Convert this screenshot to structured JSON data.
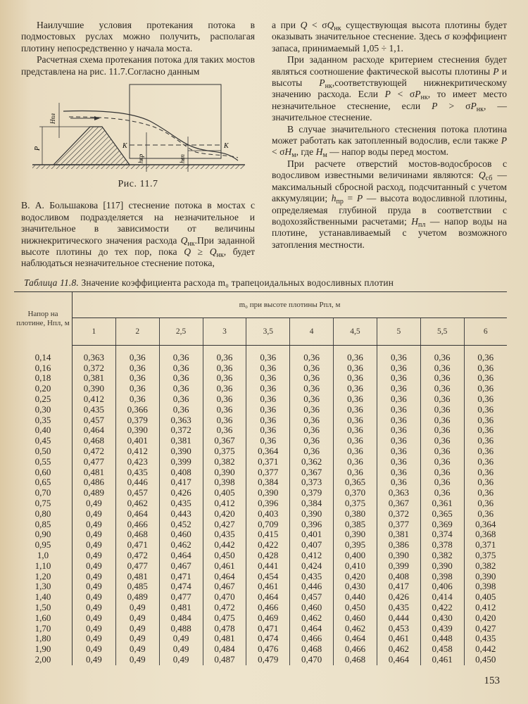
{
  "left_column": {
    "paragraphs": [
      {
        "indent": true,
        "runs": [
          "Наилучшие условия протекания потока в подмостовых руслах можно получить, располагая плотину непосредственно у начала моста."
        ]
      },
      {
        "indent": true,
        "runs": [
          "Расчетная схема протекания потока для таких мостов представлена на рис. 11.7.Согласно данным"
        ]
      }
    ],
    "continuation": {
      "indent": false,
      "runs": [
        "В. А. Большакова [117] стеснение потока в мостах с водосливом подразделяется на незначительное и значительное в зависимости от величины нижнекритического значения расхода ",
        {
          "v": "Q",
          "s": "нк"
        },
        ".При заданной высоте плотины до тех пор, пока ",
        {
          "v": "Q",
          "s": ""
        },
        " ≥ ",
        {
          "v": "Q",
          "s": "нк"
        },
        ", будет наблюдаться незначительное стеснение потока,"
      ]
    }
  },
  "figure": {
    "caption": "Рис. 11.7",
    "labels": {
      "h_pl": "Hпл",
      "p": "P",
      "k_left": "K",
      "k_right": "K",
      "h_kr": "hкр",
      "h_vp": "hвп"
    }
  },
  "right_column": {
    "paragraphs": [
      {
        "indent": false,
        "runs": [
          "а при  ",
          {
            "v": "Q",
            "s": ""
          },
          " < σ",
          {
            "v": "Q",
            "s": "нк"
          },
          " существующая высота плотины будет оказывать значительное стеснение. Здесь σ коэффициент запаса, принимаемый 1,05 ÷ 1,1."
        ]
      },
      {
        "indent": true,
        "runs": [
          "При заданном расходе критерием стеснения будет являться соотношение фактической высоты плотины ",
          {
            "v": "P",
            "s": ""
          },
          " и высоты ",
          {
            "v": "P",
            "s": "нк"
          },
          ",соответствующей нижнекритическому значению расхода. Если ",
          {
            "v": "P",
            "s": ""
          },
          " < σ",
          {
            "v": "P",
            "s": "нк"
          },
          ", то имеет место незначительное стеснение, если ",
          {
            "v": "P",
            "s": ""
          },
          " > σ",
          {
            "v": "P",
            "s": "нк"
          },
          ", — значительное стеснение."
        ]
      },
      {
        "indent": true,
        "runs": [
          "В случае значительного стеснения потока плотина может работать как затопленный водослив, если также ",
          {
            "v": "P",
            "s": ""
          },
          " < σ",
          {
            "v": "H",
            "s": "м"
          },
          ",  где ",
          {
            "v": "H",
            "s": "м"
          },
          " — напор воды перед мостом."
        ]
      },
      {
        "indent": true,
        "runs": [
          "При расчете отверстий мостов-водосбросов с водосливом известными величинами являются: ",
          {
            "v": "Q",
            "s": "сб"
          },
          " — максимальный сбросной расход, подсчитанный с учетом аккумуляции; ",
          {
            "v": "h",
            "s": "пр"
          },
          " = ",
          {
            "v": "P",
            "s": ""
          },
          " — высота водосливной плотины, определяемая глубиной пруда в соответствии с водохозяйственными расчетами; ",
          {
            "v": "H",
            "s": "пл"
          },
          " — напор воды на плотине, устанавливаемый с учетом возможного затопления местности."
        ]
      }
    ]
  },
  "table": {
    "caption_label": "Таблица 11.8.",
    "caption_text": " Значение коэффициента расхода m₀ трапецоидальных водосливных плотин",
    "stub_header": "Напор на плотине, Hпл, м",
    "span_header": "m₀ при высоте плотины Pпл, м",
    "columns": [
      "1",
      "2",
      "2,5",
      "3",
      "3,5",
      "4",
      "4,5",
      "5",
      "5,5",
      "6"
    ],
    "rows": [
      [
        "0,14",
        "0,363",
        "0,36",
        "0,36",
        "0,36",
        "0,36",
        "0,36",
        "0,36",
        "0,36",
        "0,36",
        "0,36"
      ],
      [
        "0,16",
        "0,372",
        "0,36",
        "0,36",
        "0,36",
        "0,36",
        "0,36",
        "0,36",
        "0,36",
        "0,36",
        "0,36"
      ],
      [
        "0,18",
        "0,381",
        "0,36",
        "0,36",
        "0,36",
        "0,36",
        "0,36",
        "0,36",
        "0,36",
        "0,36",
        "0,36"
      ],
      [
        "0,20",
        "0,390",
        "0,36",
        "0,36",
        "0,36",
        "0,36",
        "0,36",
        "0,36",
        "0,36",
        "0,36",
        "0,36"
      ],
      [
        "0,25",
        "0,412",
        "0,36",
        "0,36",
        "0,36",
        "0,36",
        "0,36",
        "0,36",
        "0,36",
        "0,36",
        "0,36"
      ],
      [
        "0,30",
        "0,435",
        "0,366",
        "0,36",
        "0,36",
        "0,36",
        "0,36",
        "0,36",
        "0,36",
        "0,36",
        "0,36"
      ],
      [
        "0,35",
        "0,457",
        "0,379",
        "0,363",
        "0,36",
        "0,36",
        "0,36",
        "0,36",
        "0,36",
        "0,36",
        "0,36"
      ],
      [
        "0,40",
        "0,464",
        "0,390",
        "0,372",
        "0,36",
        "0,36",
        "0,36",
        "0,36",
        "0,36",
        "0,36",
        "0,36"
      ],
      [
        "0,45",
        "0,468",
        "0,401",
        "0,381",
        "0,367",
        "0,36",
        "0,36",
        "0,36",
        "0,36",
        "0,36",
        "0,36"
      ],
      [
        "0,50",
        "0,472",
        "0,412",
        "0,390",
        "0,375",
        "0,364",
        "0,36",
        "0,36",
        "0,36",
        "0,36",
        "0,36"
      ],
      [
        "0,55",
        "0,477",
        "0,423",
        "0,399",
        "0,382",
        "0,371",
        "0,362",
        "0,36",
        "0,36",
        "0,36",
        "0,36"
      ],
      [
        "0,60",
        "0,481",
        "0,435",
        "0,408",
        "0,390",
        "0,377",
        "0,367",
        "0,36",
        "0,36",
        "0,36",
        "0,36"
      ],
      [
        "0,65",
        "0,486",
        "0,446",
        "0,417",
        "0,398",
        "0,384",
        "0,373",
        "0,365",
        "0,36",
        "0,36",
        "0,36"
      ],
      [
        "0,70",
        "0,489",
        "0,457",
        "0,426",
        "0,405",
        "0,390",
        "0,379",
        "0,370",
        "0,363",
        "0,36",
        "0,36"
      ],
      [
        "0,75",
        "0,49",
        "0,462",
        "0,435",
        "0,412",
        "0,396",
        "0,384",
        "0,375",
        "0,367",
        "0,361",
        "0,36"
      ],
      [
        "0,80",
        "0,49",
        "0,464",
        "0,443",
        "0,420",
        "0,403",
        "0,390",
        "0,380",
        "0,372",
        "0,365",
        "0,36"
      ],
      [
        "0,85",
        "0,49",
        "0,466",
        "0,452",
        "0,427",
        "0,709",
        "0,396",
        "0,385",
        "0,377",
        "0,369",
        "0,364"
      ],
      [
        "0,90",
        "0,49",
        "0,468",
        "0,460",
        "0,435",
        "0,415",
        "0,401",
        "0,390",
        "0,381",
        "0,374",
        "0,368"
      ],
      [
        "0,95",
        "0,49",
        "0,471",
        "0,462",
        "0,442",
        "0,422",
        "0,407",
        "0,395",
        "0,386",
        "0,378",
        "0,371"
      ],
      [
        "1,0",
        "0,49",
        "0,472",
        "0,464",
        "0,450",
        "0,428",
        "0,412",
        "0,400",
        "0,390",
        "0,382",
        "0,375"
      ],
      [
        "1,10",
        "0,49",
        "0,477",
        "0,467",
        "0,461",
        "0,441",
        "0,424",
        "0,410",
        "0,399",
        "0,390",
        "0,382"
      ],
      [
        "1,20",
        "0,49",
        "0,481",
        "0,471",
        "0,464",
        "0,454",
        "0,435",
        "0,420",
        "0,408",
        "0,398",
        "0,390"
      ],
      [
        "1,30",
        "0,49",
        "0,485",
        "0,474",
        "0,467",
        "0,461",
        "0,446",
        "0,430",
        "0,417",
        "0,406",
        "0,398"
      ],
      [
        "1,40",
        "0,49",
        "0,489",
        "0,477",
        "0,470",
        "0,464",
        "0,457",
        "0,440",
        "0,426",
        "0,414",
        "0,405"
      ],
      [
        "1,50",
        "0,49",
        "0,49",
        "0,481",
        "0,472",
        "0,466",
        "0,460",
        "0,450",
        "0,435",
        "0,422",
        "0,412"
      ],
      [
        "1,60",
        "0,49",
        "0,49",
        "0,484",
        "0,475",
        "0,469",
        "0,462",
        "0,460",
        "0,444",
        "0,430",
        "0,420"
      ],
      [
        "1,70",
        "0,49",
        "0,49",
        "0,488",
        "0,478",
        "0,471",
        "0,464",
        "0,462",
        "0,453",
        "0,439",
        "0,427"
      ],
      [
        "1,80",
        "0,49",
        "0,49",
        "0,49",
        "0,481",
        "0,474",
        "0,466",
        "0,464",
        "0,461",
        "0,448",
        "0,435"
      ],
      [
        "1,90",
        "0,49",
        "0,49",
        "0,49",
        "0,484",
        "0,476",
        "0,468",
        "0,466",
        "0,462",
        "0,458",
        "0,442"
      ],
      [
        "2,00",
        "0,49",
        "0,49",
        "0,49",
        "0,487",
        "0,479",
        "0,470",
        "0,468",
        "0,464",
        "0,461",
        "0,450"
      ]
    ]
  },
  "page_number": "153"
}
